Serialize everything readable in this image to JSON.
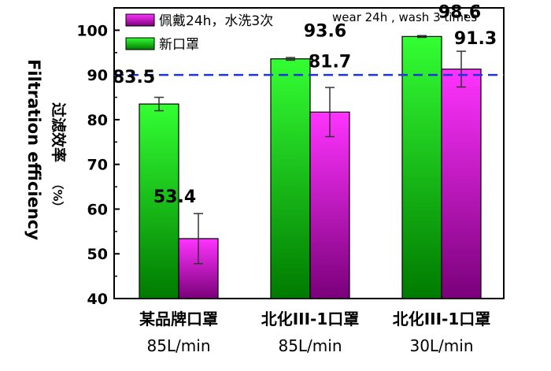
{
  "chart_data": {
    "type": "bar",
    "ylabel_en": "Filtration efficiency",
    "ylabel_cn": "过滤效率",
    "ylabel_unit": "（%）",
    "ylim": [
      40,
      105
    ],
    "yticks": [
      40,
      50,
      60,
      70,
      80,
      90,
      100
    ],
    "reference_line": {
      "y": 90,
      "style": "dashed",
      "color": "#1e36d6"
    },
    "categories": [
      {
        "line1": "某品牌口罩",
        "line2": "85L/min"
      },
      {
        "line1": "北化III-1口罩",
        "line2": "85L/min"
      },
      {
        "line1": "北化III-1口罩",
        "line2": "30L/min"
      }
    ],
    "series": [
      {
        "name": "新口罩",
        "color_top": "#33ff33",
        "color_bottom": "#007a00",
        "values": [
          83.5,
          93.6,
          98.6
        ],
        "errors": [
          1.5,
          0.3,
          0.2
        ],
        "labels": [
          "83.5",
          "93.6",
          "98.6"
        ]
      },
      {
        "name": "佩戴24h，水洗3次",
        "color_top": "#ff33ff",
        "color_bottom": "#7a007a",
        "values": [
          53.4,
          81.7,
          91.3
        ],
        "errors": [
          5.6,
          5.5,
          4.0
        ],
        "labels": [
          "53.4",
          "81.7",
          "91.3"
        ]
      }
    ],
    "annotation": "wear 24h , wash 3 times",
    "legend_position": "top-left"
  }
}
